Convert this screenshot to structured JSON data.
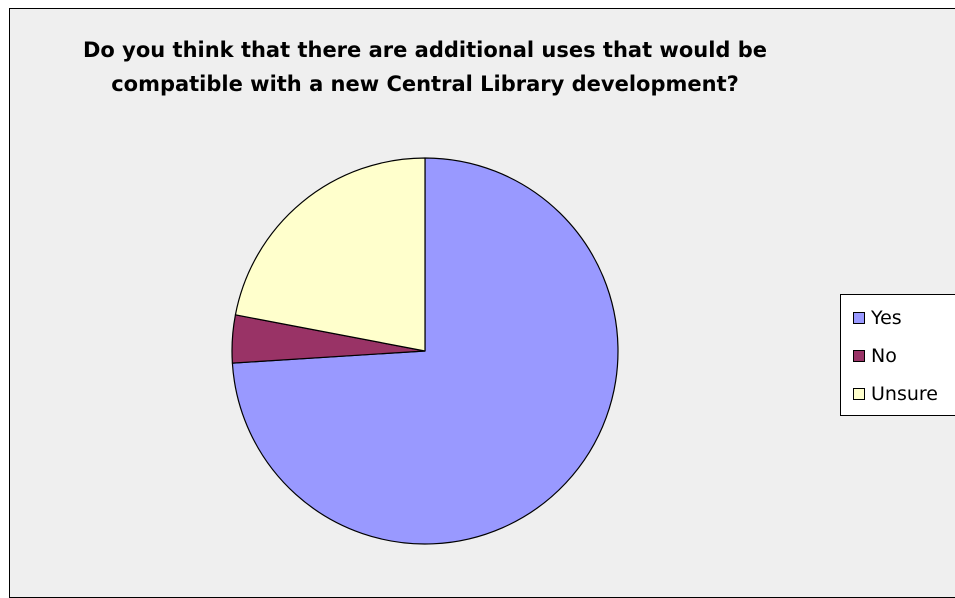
{
  "chart_data": {
    "type": "pie",
    "title_lines": [
      "Do you think that there are additional uses that would be",
      "compatible with a new Central Library development?"
    ],
    "categories": [
      "Yes",
      "No",
      "Unsure"
    ],
    "values": [
      74,
      4,
      22
    ],
    "colors": [
      "#9999ff",
      "#993366",
      "#ffffcc"
    ],
    "start_angle_deg": 0,
    "direction": "clockwise",
    "legend_position": "right"
  }
}
